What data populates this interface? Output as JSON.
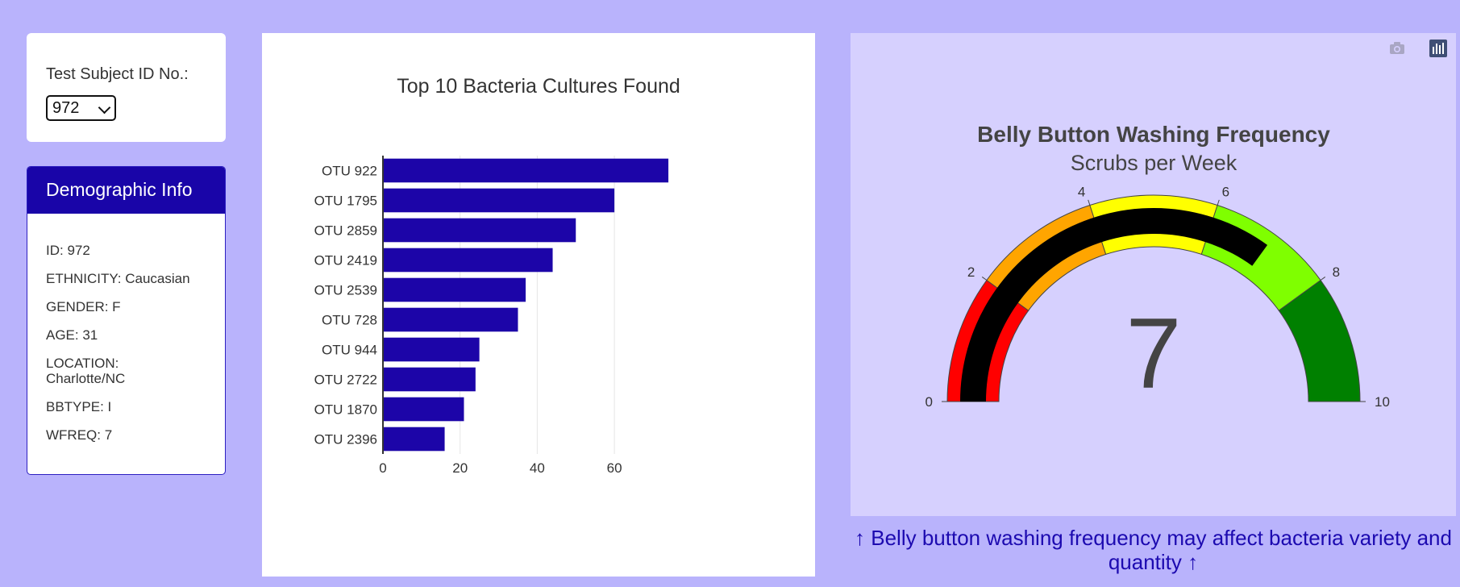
{
  "selector": {
    "label": "Test Subject ID No.:",
    "selected": "972"
  },
  "demographics": {
    "header": "Demographic Info",
    "items": [
      "ID: 972",
      "ETHNICITY: Caucasian",
      "GENDER: F",
      "AGE: 31",
      "LOCATION: Charlotte/NC",
      "BBTYPE: I",
      "WFREQ: 7"
    ]
  },
  "caption": "↑ Belly button washing frequency may affect bacteria variety and quantity ↑",
  "modebar": {
    "icons": [
      "camera-icon",
      "plotly-logo-icon"
    ]
  },
  "colors": {
    "bar": "#1c05a8",
    "page_bg": "#b9b3fc",
    "gauge_bg": "#d6d0fe"
  },
  "chart_data": [
    {
      "type": "bar",
      "orientation": "horizontal",
      "title": "Top 10 Bacteria Cultures Found",
      "categories": [
        "OTU 922",
        "OTU 1795",
        "OTU 2859",
        "OTU 2419",
        "OTU 2539",
        "OTU 728",
        "OTU 944",
        "OTU 2722",
        "OTU 1870",
        "OTU 2396"
      ],
      "values": [
        74,
        60,
        50,
        44,
        37,
        35,
        25,
        24,
        21,
        16
      ],
      "xlim": [
        0,
        79
      ],
      "xticks": [
        0,
        20,
        40,
        60
      ],
      "grid": true
    },
    {
      "type": "gauge",
      "title": "Belly Button Washing Frequency",
      "subtitle": "Scrubs per Week",
      "value": 7,
      "range": [
        0,
        10
      ],
      "ticks": [
        0,
        2,
        4,
        6,
        8,
        10
      ],
      "bar_color": "#000000",
      "steps": [
        {
          "range": [
            0,
            2
          ],
          "color": "#ff0000"
        },
        {
          "range": [
            2,
            4
          ],
          "color": "#ffa500"
        },
        {
          "range": [
            4,
            6
          ],
          "color": "#ffff00"
        },
        {
          "range": [
            6,
            8
          ],
          "color": "#7fff00"
        },
        {
          "range": [
            8,
            10
          ],
          "color": "#008000"
        }
      ]
    }
  ]
}
